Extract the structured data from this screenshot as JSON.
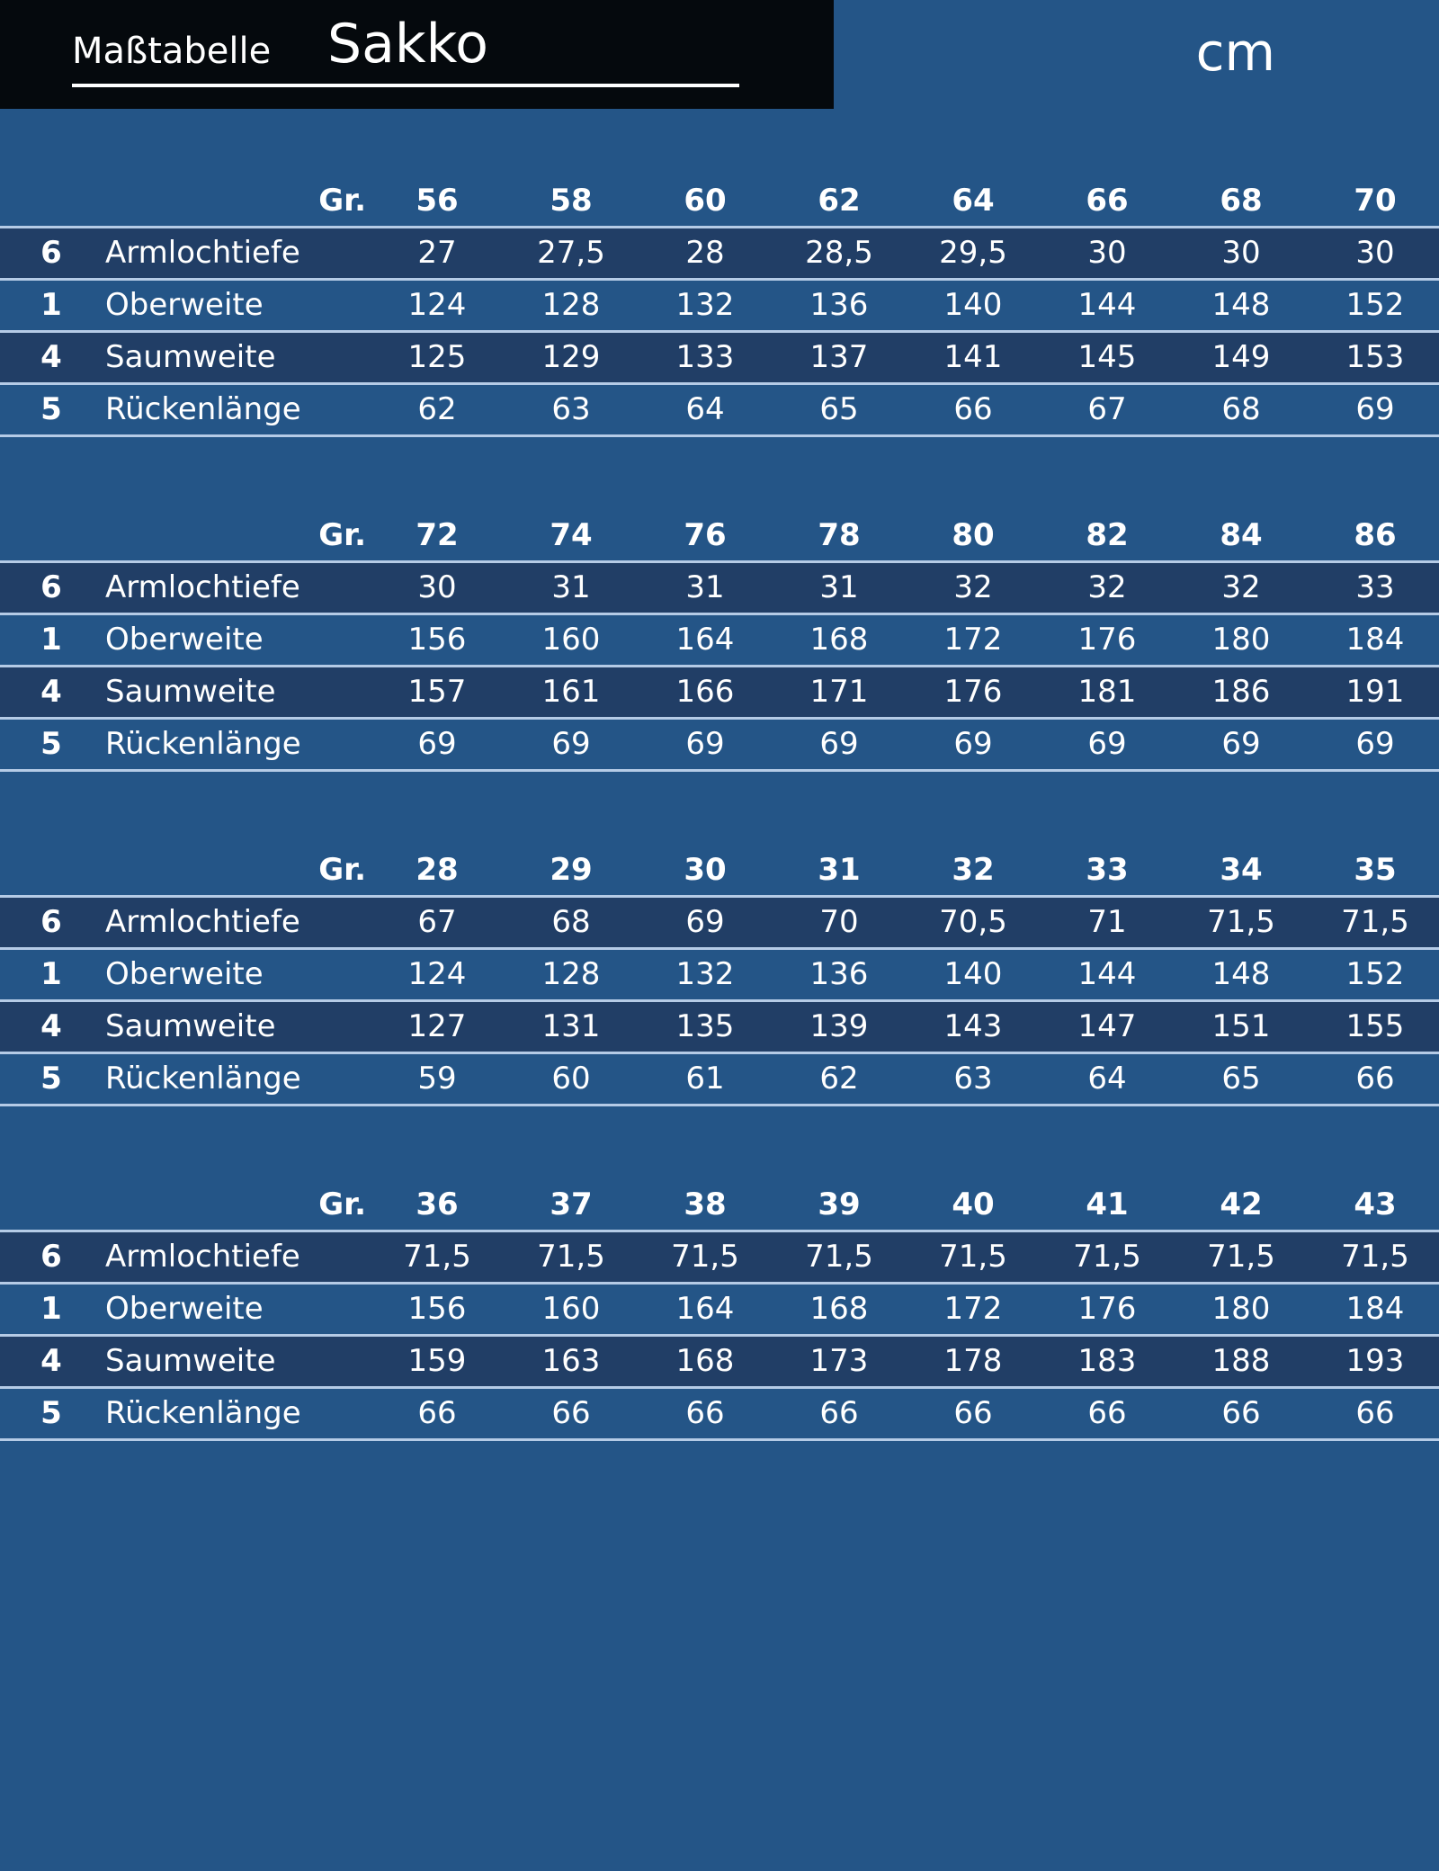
{
  "header": {
    "label": "Maßtabelle",
    "title": "Sakko",
    "unit": "cm"
  },
  "tables": [
    {
      "size_label": "Gr.",
      "sizes": [
        "56",
        "58",
        "60",
        "62",
        "64",
        "66",
        "68",
        "70"
      ],
      "rows": [
        {
          "number": "6",
          "name": "Armlochtiefe",
          "values": [
            "27",
            "27,5",
            "28",
            "28,5",
            "29,5",
            "30",
            "30",
            "30"
          ]
        },
        {
          "number": "1",
          "name": "Oberweite",
          "values": [
            "124",
            "128",
            "132",
            "136",
            "140",
            "144",
            "148",
            "152"
          ]
        },
        {
          "number": "4",
          "name": "Saumweite",
          "values": [
            "125",
            "129",
            "133",
            "137",
            "141",
            "145",
            "149",
            "153"
          ]
        },
        {
          "number": "5",
          "name": "Rückenlänge",
          "values": [
            "62",
            "63",
            "64",
            "65",
            "66",
            "67",
            "68",
            "69"
          ]
        }
      ]
    },
    {
      "size_label": "Gr.",
      "sizes": [
        "72",
        "74",
        "76",
        "78",
        "80",
        "82",
        "84",
        "86"
      ],
      "rows": [
        {
          "number": "6",
          "name": "Armlochtiefe",
          "values": [
            "30",
            "31",
            "31",
            "31",
            "32",
            "32",
            "32",
            "33"
          ]
        },
        {
          "number": "1",
          "name": "Oberweite",
          "values": [
            "156",
            "160",
            "164",
            "168",
            "172",
            "176",
            "180",
            "184"
          ]
        },
        {
          "number": "4",
          "name": "Saumweite",
          "values": [
            "157",
            "161",
            "166",
            "171",
            "176",
            "181",
            "186",
            "191"
          ]
        },
        {
          "number": "5",
          "name": "Rückenlänge",
          "values": [
            "69",
            "69",
            "69",
            "69",
            "69",
            "69",
            "69",
            "69"
          ]
        }
      ]
    },
    {
      "size_label": "Gr.",
      "sizes": [
        "28",
        "29",
        "30",
        "31",
        "32",
        "33",
        "34",
        "35"
      ],
      "rows": [
        {
          "number": "6",
          "name": "Armlochtiefe",
          "values": [
            "67",
            "68",
            "69",
            "70",
            "70,5",
            "71",
            "71,5",
            "71,5"
          ]
        },
        {
          "number": "1",
          "name": "Oberweite",
          "values": [
            "124",
            "128",
            "132",
            "136",
            "140",
            "144",
            "148",
            "152"
          ]
        },
        {
          "number": "4",
          "name": "Saumweite",
          "values": [
            "127",
            "131",
            "135",
            "139",
            "143",
            "147",
            "151",
            "155"
          ]
        },
        {
          "number": "5",
          "name": "Rückenlänge",
          "values": [
            "59",
            "60",
            "61",
            "62",
            "63",
            "64",
            "65",
            "66"
          ]
        }
      ]
    },
    {
      "size_label": "Gr.",
      "sizes": [
        "36",
        "37",
        "38",
        "39",
        "40",
        "41",
        "42",
        "43"
      ],
      "rows": [
        {
          "number": "6",
          "name": "Armlochtiefe",
          "values": [
            "71,5",
            "71,5",
            "71,5",
            "71,5",
            "71,5",
            "71,5",
            "71,5",
            "71,5"
          ]
        },
        {
          "number": "1",
          "name": "Oberweite",
          "values": [
            "156",
            "160",
            "164",
            "168",
            "172",
            "176",
            "180",
            "184"
          ]
        },
        {
          "number": "4",
          "name": "Saumweite",
          "values": [
            "159",
            "163",
            "168",
            "173",
            "178",
            "183",
            "188",
            "193"
          ]
        },
        {
          "number": "5",
          "name": "Rückenlänge",
          "values": [
            "66",
            "66",
            "66",
            "66",
            "66",
            "66",
            "66",
            "66"
          ]
        }
      ]
    }
  ]
}
